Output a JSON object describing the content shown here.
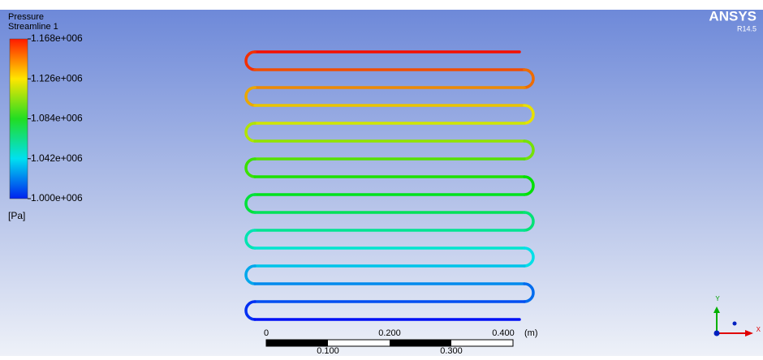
{
  "legend": {
    "title": "Pressure",
    "subtitle": "Streamline 1",
    "labels": [
      "1.168e+006",
      "1.126e+006",
      "1.084e+006",
      "1.042e+006",
      "1.000e+006"
    ],
    "unit": "[Pa]"
  },
  "logo": {
    "name": "ANSYS",
    "version": "R14.5"
  },
  "scale_bar": {
    "top_labels": [
      "0",
      "0.200",
      "0.400"
    ],
    "unit": "(m)",
    "bottom_labels": [
      "0.100",
      "0.300"
    ]
  },
  "axes": {
    "y": "Y",
    "x": "X"
  }
}
